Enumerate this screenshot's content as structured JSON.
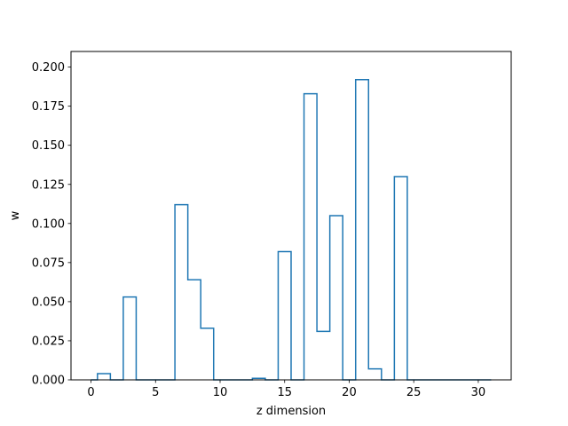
{
  "chart_data": {
    "type": "step",
    "title": "",
    "xlabel": "z dimension",
    "ylabel": "w",
    "xlim": [
      -1.55,
      32.55
    ],
    "ylim": [
      0.0,
      0.21
    ],
    "xticks": [
      0,
      5,
      10,
      15,
      20,
      25,
      30
    ],
    "xtick_labels": [
      "0",
      "5",
      "10",
      "15",
      "20",
      "25",
      "30"
    ],
    "yticks": [
      0.0,
      0.025,
      0.05,
      0.075,
      0.1,
      0.125,
      0.15,
      0.175,
      0.2
    ],
    "ytick_labels": [
      "0.000",
      "0.025",
      "0.050",
      "0.075",
      "0.100",
      "0.125",
      "0.150",
      "0.175",
      "0.200"
    ],
    "grid": false,
    "step_where": "mid",
    "series": [
      {
        "color": "#1f77b4",
        "x": [
          0,
          1,
          2,
          3,
          4,
          5,
          6,
          7,
          8,
          9,
          10,
          11,
          12,
          13,
          14,
          15,
          16,
          17,
          18,
          19,
          20,
          21,
          22,
          23,
          24,
          25,
          26,
          27,
          28,
          29,
          30,
          31
        ],
        "values": [
          0.0,
          0.004,
          0.0,
          0.053,
          0.0,
          0.0,
          0.0,
          0.112,
          0.064,
          0.033,
          0.0,
          0.0,
          0.0,
          0.001,
          0.0,
          0.082,
          0.0,
          0.183,
          0.031,
          0.105,
          0.0,
          0.192,
          0.007,
          0.0,
          0.13,
          0.0,
          0.0,
          0.0,
          0.0,
          0.0,
          0.0,
          0.0
        ]
      }
    ]
  }
}
